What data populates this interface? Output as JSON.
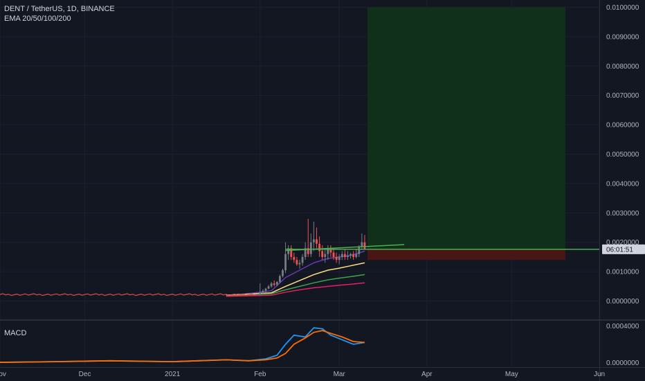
{
  "header": {
    "symbol_line": "DENT / TetherUS, 1D, BINANCE",
    "indicator_line": "EMA 20/50/100/200",
    "macd_label": "MACD"
  },
  "countdown": "06:01:51",
  "colors": {
    "background": "#131722",
    "grid": "#1c2030",
    "axis_text": "#b2b5be",
    "up_candle": "#787b86",
    "down_candle": "#ef5350",
    "target_zone": "#11301a",
    "stop_zone": "#4a1515",
    "entry_line": "#4caf50",
    "ema20": "#673ab7",
    "ema50": "#ffe082",
    "ema100": "#43a047",
    "ema200": "#e91e63",
    "macd_line": "#2196f3",
    "signal_line": "#ff6d00"
  },
  "chart_data": [
    {
      "type": "candlestick",
      "title": "DENT / TetherUS, 1D, BINANCE",
      "x_axis": {
        "tick_labels": [
          "Nov",
          "Dec",
          "2021",
          "Feb",
          "Mar",
          "Apr",
          "May",
          "Jun"
        ],
        "tick_dates": [
          "2020-11-01",
          "2020-12-01",
          "2021-01-01",
          "2021-02-01",
          "2021-03-01",
          "2021-04-01",
          "2021-05-01",
          "2021-06-01"
        ]
      },
      "y_axis": {
        "range": [
          -0.0006,
          0.0102
        ],
        "tick_labels": [
          "0.0000000",
          "0.0010000",
          "0.0020000",
          "0.0030000",
          "0.0040000",
          "0.0050000",
          "0.0060000",
          "0.0070000",
          "0.0080000",
          "0.0090000",
          "0.0100000"
        ],
        "tick_values": [
          0,
          0.001,
          0.002,
          0.003,
          0.004,
          0.005,
          0.006,
          0.007,
          0.008,
          0.009,
          0.01
        ]
      },
      "last_price": 0.00176,
      "position": {
        "entry": 0.00176,
        "target": 0.01,
        "stop": 0.0014,
        "start_date": "2021-03-11",
        "end_date": "2021-05-20"
      },
      "trend_line": {
        "start": [
          "2021-02-10",
          0.00172
        ],
        "end": [
          "2021-03-24",
          0.00192
        ]
      },
      "candles": {
        "dates": [
          "2021-02-01",
          "2021-02-02",
          "2021-02-03",
          "2021-02-04",
          "2021-02-05",
          "2021-02-06",
          "2021-02-07",
          "2021-02-08",
          "2021-02-09",
          "2021-02-10",
          "2021-02-11",
          "2021-02-12",
          "2021-02-13",
          "2021-02-14",
          "2021-02-15",
          "2021-02-16",
          "2021-02-17",
          "2021-02-18",
          "2021-02-19",
          "2021-02-20",
          "2021-02-21",
          "2021-02-22",
          "2021-02-23",
          "2021-02-24",
          "2021-02-25",
          "2021-02-26",
          "2021-02-27",
          "2021-02-28",
          "2021-03-01",
          "2021-03-02",
          "2021-03-03",
          "2021-03-04",
          "2021-03-05",
          "2021-03-06",
          "2021-03-07",
          "2021-03-08",
          "2021-03-09",
          "2021-03-10"
        ],
        "open": [
          0.00025,
          0.0003,
          0.00035,
          0.00042,
          0.0005,
          0.0006,
          0.00055,
          0.00065,
          0.00085,
          0.00105,
          0.0016,
          0.0018,
          0.0015,
          0.0014,
          0.00125,
          0.0013,
          0.0015,
          0.0018,
          0.0016,
          0.002,
          0.0021,
          0.00195,
          0.0017,
          0.0015,
          0.0016,
          0.00175,
          0.00165,
          0.0015,
          0.0014,
          0.0015,
          0.0016,
          0.0015,
          0.00155,
          0.0016,
          0.0015,
          0.0016,
          0.00185,
          0.002
        ],
        "high": [
          0.0006,
          0.0004,
          0.00045,
          0.00055,
          0.00065,
          0.0007,
          0.00068,
          0.0009,
          0.0011,
          0.002,
          0.0019,
          0.0019,
          0.00165,
          0.0015,
          0.0014,
          0.0016,
          0.002,
          0.0028,
          0.0023,
          0.0027,
          0.0025,
          0.0022,
          0.0019,
          0.0018,
          0.0019,
          0.0019,
          0.0018,
          0.00165,
          0.0016,
          0.0017,
          0.00175,
          0.0017,
          0.00165,
          0.0017,
          0.00175,
          0.0019,
          0.0023,
          0.00225
        ],
        "low": [
          0.0002,
          0.00025,
          0.0003,
          0.0004,
          0.00045,
          0.0005,
          0.0005,
          0.0006,
          0.0008,
          0.00095,
          0.0014,
          0.0014,
          0.0013,
          0.0012,
          0.0011,
          0.0012,
          0.0014,
          0.0015,
          0.0015,
          0.0017,
          0.0018,
          0.0015,
          0.0014,
          0.0013,
          0.0014,
          0.0015,
          0.0014,
          0.0013,
          0.00125,
          0.0014,
          0.0014,
          0.0014,
          0.00145,
          0.0014,
          0.00145,
          0.0015,
          0.00175,
          0.0018
        ],
        "close": [
          0.0003,
          0.00035,
          0.00042,
          0.0005,
          0.0006,
          0.00055,
          0.00065,
          0.00085,
          0.00105,
          0.0016,
          0.0018,
          0.0015,
          0.0014,
          0.00125,
          0.0013,
          0.0015,
          0.0018,
          0.0016,
          0.002,
          0.0021,
          0.00195,
          0.0017,
          0.0015,
          0.0016,
          0.00175,
          0.00165,
          0.0015,
          0.0014,
          0.0015,
          0.0016,
          0.0015,
          0.00155,
          0.0016,
          0.0015,
          0.0016,
          0.00185,
          0.002,
          0.00176
        ]
      },
      "pre_feb_price_approx": 0.00022,
      "ema_series": [
        {
          "name": "EMA 20",
          "points": [
            [
              "2021-01-25",
              0.00022
            ],
            [
              "2021-02-05",
              0.00035
            ],
            [
              "2021-02-10",
              0.0008
            ],
            [
              "2021-02-15",
              0.00105
            ],
            [
              "2021-02-20",
              0.0013
            ],
            [
              "2021-02-25",
              0.00145
            ],
            [
              "2021-03-01",
              0.0015
            ],
            [
              "2021-03-05",
              0.00155
            ],
            [
              "2021-03-10",
              0.0017
            ]
          ]
        },
        {
          "name": "EMA 50",
          "points": [
            [
              "2021-01-20",
              0.0002
            ],
            [
              "2021-02-05",
              0.00028
            ],
            [
              "2021-02-10",
              0.0005
            ],
            [
              "2021-02-15",
              0.0007
            ],
            [
              "2021-02-20",
              0.0009
            ],
            [
              "2021-02-25",
              0.00105
            ],
            [
              "2021-03-01",
              0.00112
            ],
            [
              "2021-03-05",
              0.0012
            ],
            [
              "2021-03-10",
              0.0013
            ]
          ]
        },
        {
          "name": "EMA 100",
          "points": [
            [
              "2021-01-20",
              0.00018
            ],
            [
              "2021-02-05",
              0.00025
            ],
            [
              "2021-02-10",
              0.00038
            ],
            [
              "2021-02-15",
              0.0005
            ],
            [
              "2021-02-20",
              0.00062
            ],
            [
              "2021-02-25",
              0.00072
            ],
            [
              "2021-03-01",
              0.00078
            ],
            [
              "2021-03-05",
              0.00083
            ],
            [
              "2021-03-10",
              0.0009
            ]
          ]
        },
        {
          "name": "EMA 200",
          "points": [
            [
              "2021-01-20",
              0.00016
            ],
            [
              "2021-02-05",
              0.0002
            ],
            [
              "2021-02-10",
              0.0003
            ],
            [
              "2021-02-15",
              0.00038
            ],
            [
              "2021-02-20",
              0.00045
            ],
            [
              "2021-02-25",
              0.0005
            ],
            [
              "2021-03-01",
              0.00054
            ],
            [
              "2021-03-05",
              0.00057
            ],
            [
              "2021-03-10",
              0.00062
            ]
          ]
        }
      ]
    },
    {
      "type": "line",
      "title": "MACD",
      "y_axis": {
        "range": [
          -5e-05,
          0.00045
        ],
        "tick_labels": [
          "0.0000000",
          "0.0004000"
        ],
        "tick_values": [
          0,
          0.0004
        ]
      },
      "series": [
        {
          "name": "",
          "role": "macd",
          "points": [
            [
              "2020-10-25",
              0.0
            ],
            [
              "2020-11-20",
              1e-05
            ],
            [
              "2020-12-10",
              2e-05
            ],
            [
              "2021-01-01",
              1e-05
            ],
            [
              "2021-01-10",
              2e-05
            ],
            [
              "2021-01-20",
              3e-05
            ],
            [
              "2021-01-28",
              2e-05
            ],
            [
              "2021-02-03",
              4e-05
            ],
            [
              "2021-02-07",
              8e-05
            ],
            [
              "2021-02-10",
              0.0002
            ],
            [
              "2021-02-13",
              0.0003
            ],
            [
              "2021-02-17",
              0.00028
            ],
            [
              "2021-02-20",
              0.00038
            ],
            [
              "2021-02-23",
              0.00037
            ],
            [
              "2021-02-26",
              0.0003
            ],
            [
              "2021-03-02",
              0.00025
            ],
            [
              "2021-03-06",
              0.0002
            ],
            [
              "2021-03-10",
              0.00022
            ]
          ]
        },
        {
          "name": "",
          "role": "signal",
          "points": [
            [
              "2020-10-25",
              0.0
            ],
            [
              "2020-11-20",
              1e-05
            ],
            [
              "2020-12-10",
              2e-05
            ],
            [
              "2021-01-01",
              1e-05
            ],
            [
              "2021-01-10",
              2e-05
            ],
            [
              "2021-01-20",
              3e-05
            ],
            [
              "2021-01-28",
              2e-05
            ],
            [
              "2021-02-03",
              3e-05
            ],
            [
              "2021-02-07",
              5e-05
            ],
            [
              "2021-02-10",
              0.0001
            ],
            [
              "2021-02-13",
              0.0002
            ],
            [
              "2021-02-17",
              0.00027
            ],
            [
              "2021-02-20",
              0.00033
            ],
            [
              "2021-02-23",
              0.00035
            ],
            [
              "2021-02-26",
              0.00032
            ],
            [
              "2021-03-02",
              0.00028
            ],
            [
              "2021-03-06",
              0.00023
            ],
            [
              "2021-03-10",
              0.00022
            ]
          ]
        }
      ]
    }
  ]
}
